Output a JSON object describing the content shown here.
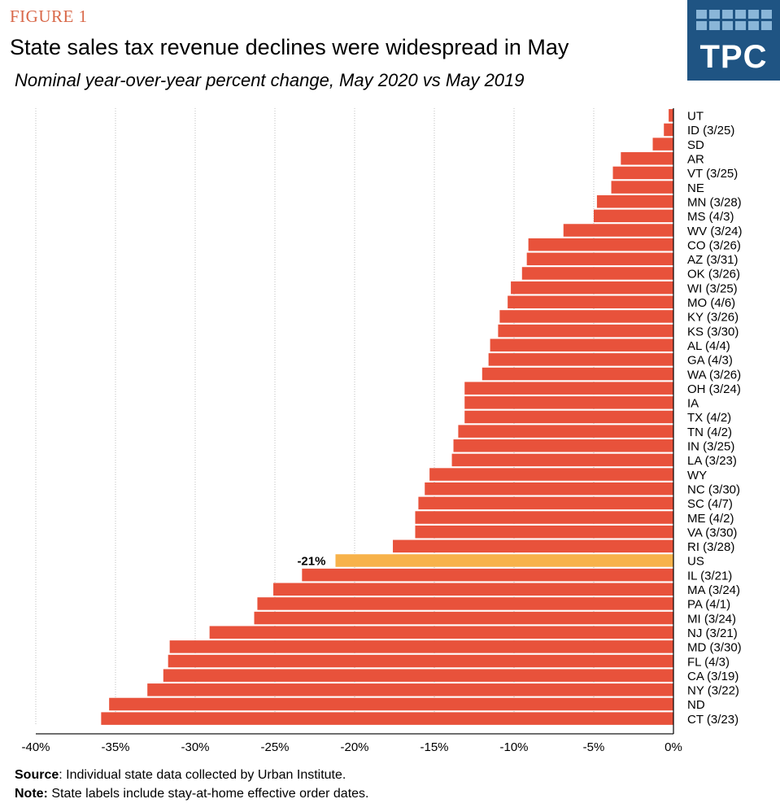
{
  "figure_label": "FIGURE 1",
  "logo": {
    "text": "TPC",
    "color": "#1f5483"
  },
  "footnotes": {
    "source_label": "Source",
    "source_text": ": Individual  state data collected by Urban Institute.",
    "note_label": "Note:",
    "note_text": " State labels include stay-at-home  effective  order dates."
  },
  "colors": {
    "bar": "#e8523b",
    "highlight": "#f7b24a",
    "grid": "#bfbfbf"
  },
  "chart_data": {
    "type": "bar",
    "orientation": "horizontal",
    "title": "State sales tax revenue declines were widespread in May",
    "subtitle": "Nominal year-over-year percent change, May 2020 vs May 2019",
    "xlabel": "",
    "ylabel": "",
    "xlim": [
      -40,
      0
    ],
    "x_ticks": [
      "-40%",
      "-35%",
      "-30%",
      "-25%",
      "-20%",
      "-15%",
      "-10%",
      "-5%",
      "0%"
    ],
    "grid": "vertical dotted",
    "categories": [
      "UT",
      "ID (3/25)",
      "SD",
      "AR",
      "VT (3/25)",
      "NE",
      "MN (3/28)",
      "MS (4/3)",
      "WV (3/24)",
      "CO (3/26)",
      "AZ (3/31)",
      "OK (3/26)",
      "WI (3/25)",
      "MO (4/6)",
      "KY (3/26)",
      "KS (3/30)",
      "AL (4/4)",
      "GA (4/3)",
      "WA (3/26)",
      "OH (3/24)",
      "IA",
      "TX (4/2)",
      "TN (4/2)",
      "IN (3/25)",
      "LA (3/23)",
      "WY",
      "NC (3/30)",
      "SC (4/7)",
      "ME (4/2)",
      "VA (3/30)",
      "RI (3/28)",
      "US",
      "IL (3/21)",
      "MA (3/24)",
      "PA (4/1)",
      "MI (3/24)",
      "NJ (3/21)",
      "MD (3/30)",
      "FL (4/3)",
      "CA (3/19)",
      "NY (3/22)",
      "ND",
      "CT (3/23)"
    ],
    "values": [
      -0.3,
      -0.6,
      -1.3,
      -3.3,
      -3.8,
      -3.9,
      -4.8,
      -5.0,
      -6.9,
      -9.1,
      -9.2,
      -9.5,
      -10.2,
      -10.4,
      -10.9,
      -11.0,
      -11.5,
      -11.6,
      -12.0,
      -13.1,
      -13.1,
      -13.1,
      -13.5,
      -13.8,
      -13.9,
      -15.3,
      -15.6,
      -16.0,
      -16.2,
      -16.2,
      -17.6,
      -21.2,
      -23.3,
      -25.1,
      -26.1,
      -26.3,
      -29.1,
      -31.6,
      -31.7,
      -32.0,
      -33.0,
      -35.4,
      -35.9
    ],
    "highlight_category": "US",
    "data_labels": [
      {
        "category": "US",
        "text": "-21%"
      }
    ]
  }
}
